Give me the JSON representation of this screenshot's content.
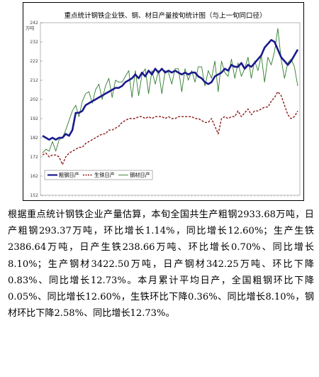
{
  "chart_data": {
    "type": "line",
    "title": "重点统计钢铁企业铁、钢、材日产量按旬统计图（与上一旬同口径）",
    "ylabel": "万吨",
    "y_ticks": [
      "242",
      "232",
      "222",
      "212",
      "202",
      "192",
      "182",
      "172",
      "162",
      "152"
    ],
    "ylim": [
      152,
      242
    ],
    "grid": false,
    "legend_position": "bottom-left",
    "series": [
      {
        "name": "粗钢日产",
        "color": "#1a1a8c",
        "style": "solid-thick",
        "values": [
          183,
          182,
          181,
          182,
          181,
          182,
          182,
          184,
          183,
          186,
          195,
          195,
          196,
          199,
          200,
          201,
          202,
          203,
          204,
          205,
          206,
          207,
          208,
          208,
          209,
          211,
          212,
          213,
          215,
          213,
          216,
          214,
          217,
          215,
          218,
          216,
          218,
          216,
          217,
          216,
          217,
          216,
          215,
          216,
          215,
          216,
          216,
          214,
          213,
          211,
          210,
          211,
          214,
          215,
          216,
          218,
          217,
          220,
          219,
          219,
          221,
          218,
          220,
          219,
          221,
          223,
          225,
          229,
          231,
          233,
          232,
          228,
          224,
          222,
          220,
          222,
          225,
          228
        ]
      },
      {
        "name": "生铁日产",
        "color": "#8b1a1a",
        "style": "dashed",
        "values": [
          173,
          174,
          172,
          173,
          173,
          172,
          168,
          172,
          174,
          175,
          176,
          177,
          177,
          179,
          180,
          181,
          182,
          183,
          184,
          184,
          186,
          186,
          187,
          188,
          190,
          191,
          192,
          192,
          192,
          193,
          193,
          192,
          193,
          192,
          193,
          193,
          193,
          192,
          193,
          192,
          192,
          193,
          193,
          193,
          193,
          193,
          192,
          192,
          191,
          190,
          190,
          192,
          188,
          184,
          192,
          193,
          192,
          193,
          193,
          196,
          193,
          195,
          197,
          194,
          196,
          196,
          197,
          198,
          198,
          201,
          203,
          206,
          204,
          199,
          194,
          192,
          193,
          196
        ]
      },
      {
        "name": "钢材日产",
        "color": "#2e7d2e",
        "style": "solid-thin",
        "values": [
          174,
          176,
          175,
          180,
          175,
          181,
          182,
          186,
          191,
          196,
          199,
          193,
          201,
          205,
          206,
          200,
          207,
          210,
          202,
          209,
          213,
          203,
          212,
          211,
          211,
          214,
          217,
          203,
          217,
          204,
          215,
          218,
          205,
          217,
          210,
          217,
          205,
          217,
          216,
          210,
          218,
          218,
          206,
          218,
          212,
          217,
          211,
          219,
          219,
          209,
          217,
          213,
          222,
          206,
          222,
          216,
          214,
          223,
          213,
          221,
          214,
          218,
          224,
          213,
          222,
          217,
          225,
          211,
          224,
          220,
          227,
          239,
          223,
          213,
          221,
          223,
          219,
          209
        ]
      }
    ]
  },
  "paragraph": "根据重点统计钢铁企业产量估算，本旬全国共生产粗钢2933.68万吨，日产粗钢293.37万吨，环比增长1.14%，同比增长12.60%；生产生铁2386.64万吨，日产生铁238.66万吨、环比增长0.70%、同比增长8.10%；生产钢材3422.50万吨，日产钢材342.25万吨、环比下降0.83%、同比增长12.73%。本月累计平均日产，全国粗钢环比下降0.05%、同比增长12.60%，生铁环比下降0.36%、同比增长8.10%，钢材环比下降2.58%、同比增长12.73%。",
  "colors": {
    "crude_steel": "#1a1a8c",
    "pig_iron": "#8b1a1a",
    "steel_products": "#2e7d2e"
  }
}
